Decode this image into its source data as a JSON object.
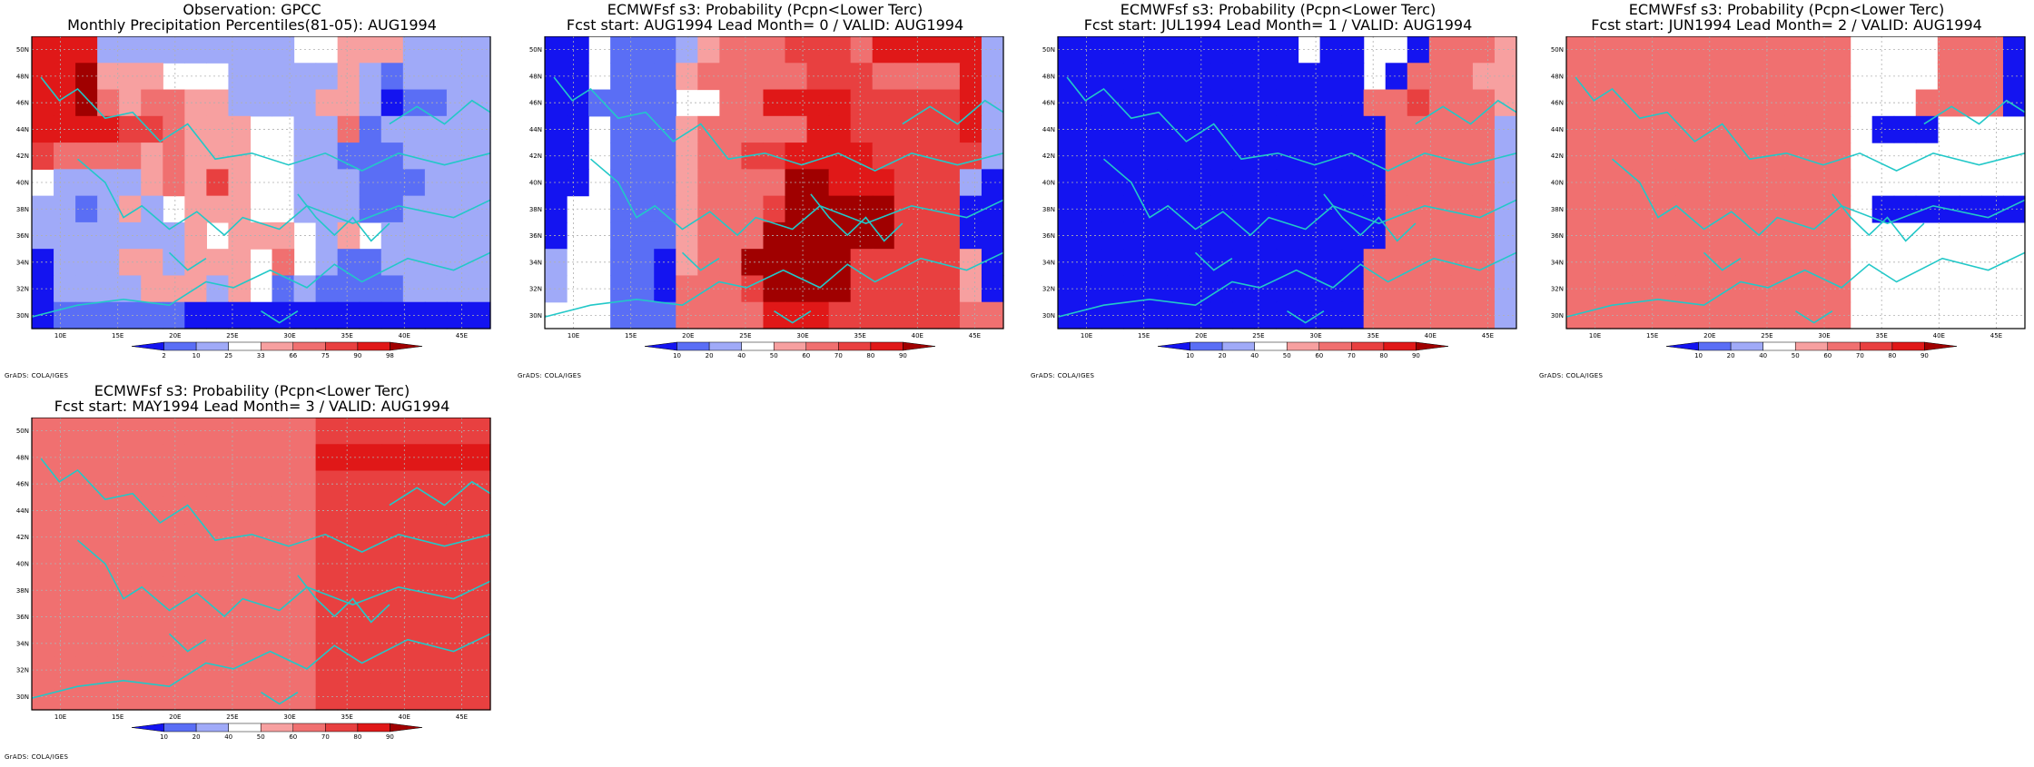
{
  "panels": [
    {
      "id": "obs",
      "title_line1": "Observation: GPCC",
      "title_line2": "Monthly Precipitation Percentiles(81-05): AUG1994",
      "colorbar_labels": [
        "2",
        "10",
        "25",
        "33",
        "66",
        "75",
        "90",
        "98"
      ],
      "credit": "GrADS: COLA/IGES"
    },
    {
      "id": "lead0",
      "title_line1": "ECMWFsf s3: Probability (Pcpn<Lower Terc)",
      "title_line2": "Fcst start: AUG1994   Lead Month= 0 / VALID: AUG1994",
      "colorbar_labels": [
        "10",
        "20",
        "40",
        "50",
        "60",
        "70",
        "80",
        "90"
      ],
      "credit": "GrADS: COLA/IGES"
    },
    {
      "id": "lead1",
      "title_line1": "ECMWFsf s3: Probability (Pcpn<Lower Terc)",
      "title_line2": "Fcst start: JUL1994   Lead Month= 1 / VALID: AUG1994",
      "colorbar_labels": [
        "10",
        "20",
        "40",
        "50",
        "60",
        "70",
        "80",
        "90"
      ],
      "credit": "GrADS: COLA/IGES"
    },
    {
      "id": "lead2",
      "title_line1": "ECMWFsf s3: Probability (Pcpn<Lower Terc)",
      "title_line2": "Fcst start: JUN1994   Lead Month= 2 / VALID: AUG1994",
      "colorbar_labels": [
        "10",
        "20",
        "40",
        "50",
        "60",
        "70",
        "80",
        "90"
      ],
      "credit": "GrADS: COLA/IGES"
    },
    {
      "id": "lead3",
      "title_line1": "ECMWFsf s3: Probability (Pcpn<Lower Terc)",
      "title_line2": "Fcst start: MAY1994   Lead Month= 3 / VALID: AUG1994",
      "colorbar_labels": [
        "10",
        "20",
        "40",
        "50",
        "60",
        "70",
        "80",
        "90"
      ],
      "credit": "GrADS: COLA/IGES"
    }
  ],
  "axes": {
    "lon_labels": [
      "10E",
      "15E",
      "20E",
      "25E",
      "30E",
      "35E",
      "40E",
      "45E"
    ],
    "lat_labels": [
      "30N",
      "32N",
      "34N",
      "36N",
      "38N",
      "40N",
      "42N",
      "44N",
      "46N",
      "48N",
      "50N"
    ]
  },
  "colors": {
    "palette": [
      "#1414f0",
      "#5a6ef5",
      "#a0aaf8",
      "#ffffff",
      "#f7a0a0",
      "#f07070",
      "#e84040",
      "#e01818",
      "#a00000"
    ],
    "coastline": "#22c8c8",
    "grid": "#b0b0b0"
  },
  "grids": [
    [
      "777222222222334442222",
      "778444333222224212222",
      "778545544222244201122",
      "777766544433225122222",
      "655554544433221112222",
      "322224546433222111222",
      "221242344433222112222",
      "222222243444324322222",
      "022244244435321122222",
      "022224442431211112222",
      "011111100000000000000"
    ],
    [
      "003111245556665777772",
      "003111455555666555572",
      "001111335577776666672",
      "003111455555776666672",
      "003111455667777666662",
      "003111455558877766620",
      "033111455568888866600",
      "033111455588888866600",
      "233110455888886666640",
      "233110555688886666640",
      "333111555577766666655"
    ],
    [
      "000000000003003305554",
      "000000000000003055544",
      "000000000000005565554",
      "000000000000000555552",
      "000000000000000555552",
      "000000000000000555552",
      "000000000000000555552",
      "000000000000000555552",
      "000000000000005555552",
      "000000000000005555552",
      "000000000000005555552"
    ],
    [
      "555555555555533335550",
      "555555555555533335550",
      "555555555555533355550",
      "555555555555530003333",
      "555555555555533333333",
      "555555555555533333333",
      "555555555555530000000",
      "555555555555533333333",
      "555555555555533333333",
      "555555555555533333333",
      "555555555555533333333"
    ],
    [
      "555555555555566666666",
      "555555555555577777777",
      "555555555555566666666",
      "555555555555566666666",
      "555555555555566666666",
      "555555555555566666666",
      "555555555555566666666",
      "555555555555566666666",
      "555555555555566666666",
      "555555555555566666666",
      "555555555555566666666"
    ]
  ]
}
